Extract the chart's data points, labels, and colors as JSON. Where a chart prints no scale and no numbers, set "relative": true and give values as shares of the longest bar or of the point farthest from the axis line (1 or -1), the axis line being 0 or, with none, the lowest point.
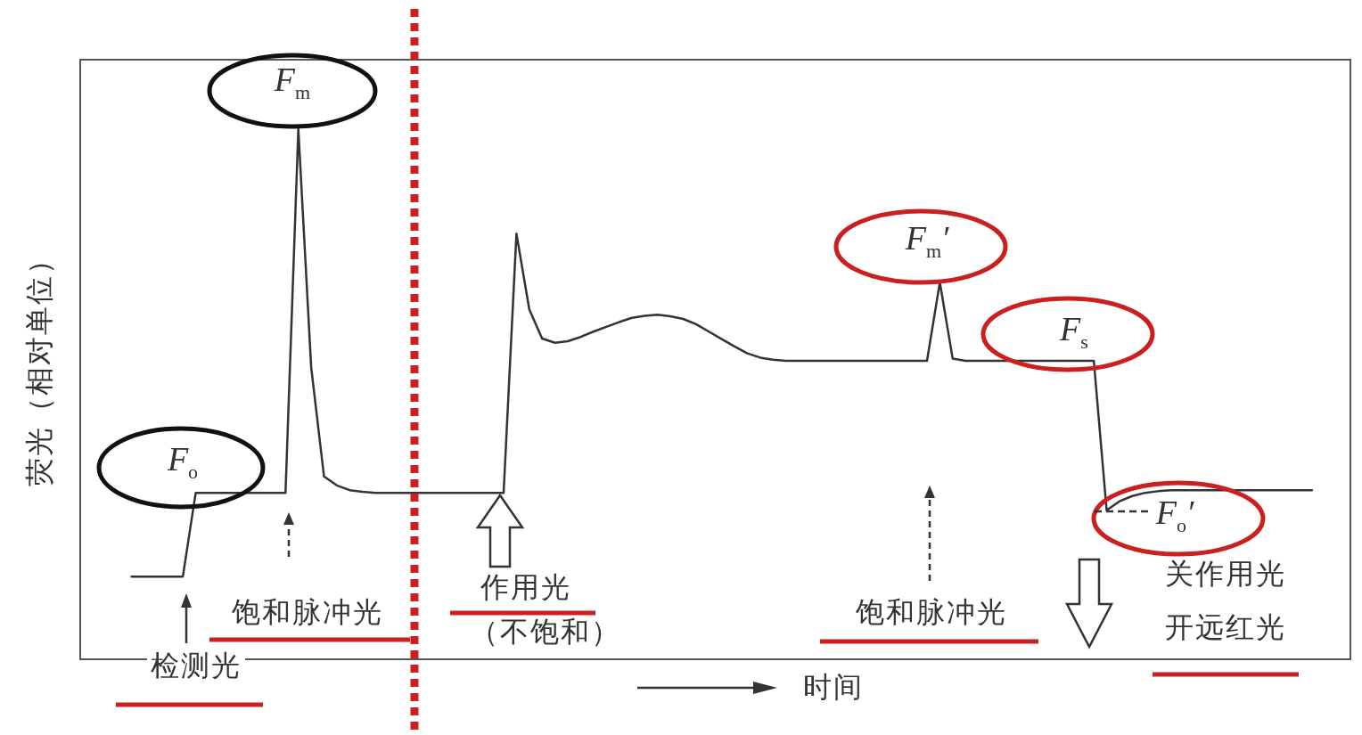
{
  "chart_data": {
    "type": "line",
    "relative": true,
    "xlabel": "时间",
    "ylabel": "荧光（相对单位）",
    "grid": false,
    "marker": "none",
    "line_style": "solid",
    "categories": [
      null,
      null,
      null,
      null,
      null,
      null,
      null,
      null,
      null,
      null,
      null,
      null,
      null,
      null,
      null,
      null,
      null,
      null,
      null,
      null,
      null,
      null,
      null,
      null,
      null,
      null,
      null,
      null,
      null,
      null,
      null,
      null,
      null,
      null,
      null,
      null,
      null,
      null,
      null,
      null,
      null,
      null,
      null,
      null,
      null,
      null,
      null,
      null,
      null,
      null,
      null,
      null,
      null,
      null,
      null,
      null,
      null,
      null,
      null,
      null,
      null,
      null,
      null,
      null,
      null,
      null,
      null,
      null,
      null,
      null,
      null,
      null,
      null,
      null,
      null,
      null,
      null,
      null,
      null,
      null,
      null,
      null,
      null,
      null,
      null,
      null,
      null,
      null,
      null,
      null,
      null,
      null,
      null,
      null,
      null,
      null,
      null,
      null,
      null,
      null
    ],
    "series": [
      {
        "color": "#333333",
        "values": [
          null,
          null,
          null,
          null,
          0.156,
          0.156,
          0.156,
          0.156,
          0.156,
          0.314,
          0.314,
          0.314,
          0.314,
          0.314,
          0.314,
          0.314,
          0.314,
          1,
          0.551,
          0.345,
          0.328,
          0.319,
          0.316,
          0.314,
          0.314,
          0.314,
          0.314,
          0.314,
          0.314,
          0.314,
          0.314,
          0.314,
          0.314,
          0.314,
          0.803,
          0.66,
          0.605,
          0.597,
          0.6,
          0.608,
          0.618,
          0.627,
          0.636,
          0.644,
          0.648,
          0.65,
          0.647,
          0.642,
          0.632,
          0.618,
          0.604,
          0.59,
          0.577,
          0.569,
          0.565,
          0.563,
          0.563,
          0.563,
          0.563,
          0.563,
          0.563,
          0.563,
          0.563,
          0.563,
          0.563,
          0.563,
          0.563,
          0.711,
          0.567,
          0.563,
          0.563,
          0.563,
          0.563,
          0.563,
          0.563,
          0.563,
          0.563,
          0.563,
          0.563,
          0.563,
          0.281,
          0.298,
          0.308,
          0.314,
          0.317,
          0.319,
          0.319,
          0.319,
          0.319,
          0.319,
          0.319,
          0.319,
          0.319,
          0.319,
          0.319,
          0.319,
          0.319,
          null,
          null,
          null
        ]
      }
    ],
    "annotations": [
      "F$_{o}$",
      "F$_{m}$",
      "F$_{m}$′",
      "F$_{s}$",
      "F$_{o}$′",
      "检测光",
      "饱和脉冲光",
      "作用光",
      "（不饱和）",
      "饱和脉冲光",
      "关作用光",
      "开远红光"
    ]
  }
}
